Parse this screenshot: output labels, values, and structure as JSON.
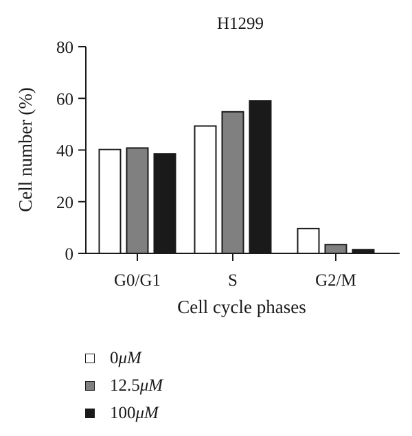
{
  "chart_data": {
    "type": "bar",
    "title": "H1299",
    "xlabel": "Cell cycle phases",
    "ylabel": "Cell number (%)",
    "categories": [
      "G0/G1",
      "S",
      "G2/M"
    ],
    "ylim": [
      0,
      80
    ],
    "yticks": [
      "0",
      "20",
      "40",
      "60",
      "80"
    ],
    "series": [
      {
        "name": "0 μM",
        "values": [
          40.2,
          49.3,
          9.6
        ],
        "color": "#ffffff"
      },
      {
        "name": "12.5 μM",
        "values": [
          40.8,
          54.8,
          3.4
        ],
        "color": "#808080"
      },
      {
        "name": "100 μM",
        "values": [
          38.5,
          59.0,
          1.4
        ],
        "color": "#1a1a1a"
      }
    ],
    "grid": false,
    "legend": "bottom-left"
  },
  "legend_items": [
    {
      "value": "0",
      "unit": "μM"
    },
    {
      "value": "12.5",
      "unit": "μM"
    },
    {
      "value": "100",
      "unit": "μM"
    }
  ]
}
